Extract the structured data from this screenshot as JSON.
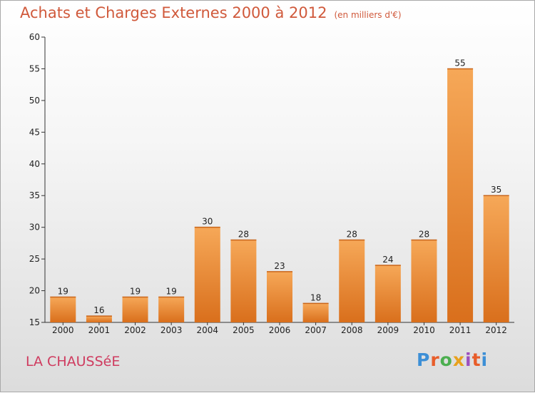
{
  "header": {
    "title": "Achats et Charges Externes 2000 à 2012",
    "unit": "(en milliers d'€)"
  },
  "footer": {
    "commune": "LA CHAUSSéE",
    "logo_letters": [
      "P",
      "r",
      "o",
      "x",
      "i",
      "t",
      "i"
    ],
    "logo_colors": [
      "#3d8fd6",
      "#e85d2a",
      "#4caf50",
      "#e8a11c",
      "#9c4fbf",
      "#e85d2a",
      "#3d8fd6"
    ]
  },
  "colors": {
    "bar_top": "#f6a858",
    "bar_bottom": "#d96f1c",
    "title": "#d0593b",
    "commune": "#cf3b5f"
  },
  "chart_data": {
    "type": "bar",
    "title": "Achats et Charges Externes 2000 à 2012",
    "subtitle": "(en milliers d'€)",
    "categories": [
      "2000",
      "2001",
      "2002",
      "2003",
      "2004",
      "2005",
      "2006",
      "2007",
      "2008",
      "2009",
      "2010",
      "2011",
      "2012"
    ],
    "values": [
      19,
      16,
      19,
      19,
      30,
      28,
      23,
      18,
      28,
      24,
      28,
      55,
      35
    ],
    "ylim": [
      15,
      60
    ],
    "yticks": [
      15,
      20,
      25,
      30,
      35,
      40,
      45,
      50,
      55,
      60
    ],
    "grid": false,
    "legend": false
  }
}
